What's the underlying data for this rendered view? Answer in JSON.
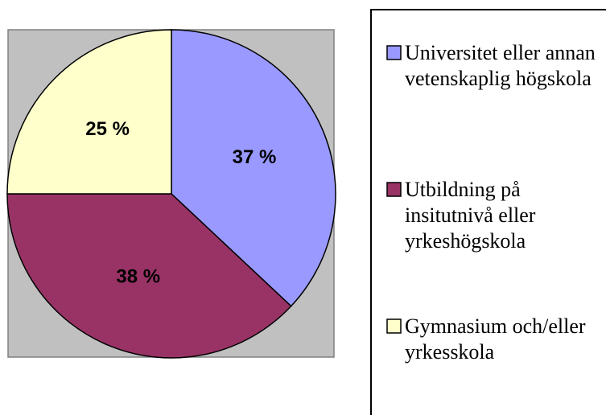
{
  "chart_data": {
    "type": "pie",
    "categories": [
      "Universitet eller annan vetenskaplig högskola",
      "Utbildning på insitutnivå eller yrkeshögskola",
      "Gymnasium och/eller yrkesskola"
    ],
    "values": [
      37,
      38,
      25
    ],
    "value_labels": [
      "37 %",
      "38 %",
      "25 %"
    ],
    "colors": [
      "#9999ff",
      "#993366",
      "#ffffcc"
    ]
  }
}
